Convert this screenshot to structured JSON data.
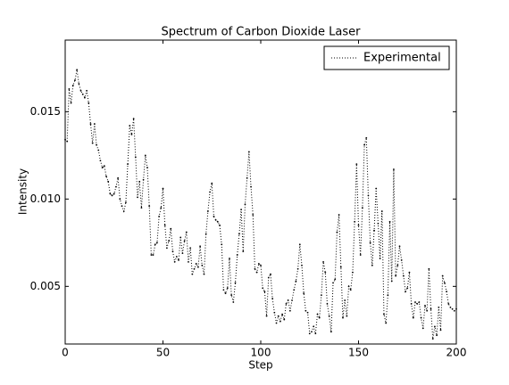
{
  "chart_data": {
    "type": "line",
    "title": "Spectrum of Carbon Dioxide Laser",
    "x_label": "Step",
    "y_label": "Intensity",
    "x": [
      0,
      1,
      2,
      3,
      4,
      5,
      6,
      7,
      8,
      9,
      10,
      11,
      12,
      13,
      14,
      15,
      16,
      17,
      18,
      19,
      20,
      21,
      22,
      23,
      24,
      25,
      26,
      27,
      28,
      29,
      30,
      31,
      32,
      33,
      34,
      35,
      36,
      37,
      38,
      39,
      40,
      41,
      42,
      43,
      44,
      45,
      46,
      47,
      48,
      49,
      50,
      51,
      52,
      53,
      54,
      55,
      56,
      57,
      58,
      59,
      60,
      61,
      62,
      63,
      64,
      65,
      66,
      67,
      68,
      69,
      70,
      71,
      72,
      73,
      74,
      75,
      76,
      77,
      78,
      79,
      80,
      81,
      82,
      83,
      84,
      85,
      86,
      87,
      88,
      89,
      90,
      91,
      92,
      93,
      94,
      95,
      96,
      97,
      98,
      99,
      100,
      101,
      102,
      103,
      104,
      105,
      106,
      107,
      108,
      109,
      110,
      111,
      112,
      113,
      114,
      115,
      116,
      117,
      118,
      119,
      120,
      121,
      122,
      123,
      124,
      125,
      126,
      127,
      128,
      129,
      130,
      131,
      132,
      133,
      134,
      135,
      136,
      137,
      138,
      139,
      140,
      141,
      142,
      143,
      144,
      145,
      146,
      147,
      148,
      149,
      150,
      151,
      152,
      153,
      154,
      155,
      156,
      157,
      158,
      159,
      160,
      161,
      162,
      163,
      164,
      165,
      166,
      167,
      168,
      169,
      170,
      171,
      172,
      173,
      174,
      175,
      176,
      177,
      178,
      179,
      180,
      181,
      182,
      183,
      184,
      185,
      186,
      187,
      188,
      189,
      190,
      191,
      192,
      193,
      194,
      195,
      196,
      197,
      198,
      199,
      200
    ],
    "series": [
      {
        "name": "Experimental",
        "color": "#000000",
        "values": [
          0.0134,
          0.0133,
          0.0163,
          0.0155,
          0.0165,
          0.0168,
          0.0174,
          0.0166,
          0.0162,
          0.016,
          0.0158,
          0.0162,
          0.0155,
          0.0143,
          0.0132,
          0.0143,
          0.0131,
          0.0128,
          0.0122,
          0.0118,
          0.0119,
          0.0113,
          0.011,
          0.0103,
          0.0102,
          0.0103,
          0.0107,
          0.0112,
          0.01,
          0.0096,
          0.0093,
          0.0098,
          0.012,
          0.0142,
          0.0137,
          0.0146,
          0.0124,
          0.0101,
          0.011,
          0.0095,
          0.0111,
          0.0125,
          0.0118,
          0.0096,
          0.0068,
          0.0068,
          0.0074,
          0.0075,
          0.009,
          0.0095,
          0.0106,
          0.0085,
          0.0072,
          0.0076,
          0.0083,
          0.007,
          0.0064,
          0.0067,
          0.0065,
          0.0078,
          0.0069,
          0.0076,
          0.0081,
          0.0064,
          0.0072,
          0.0057,
          0.006,
          0.0063,
          0.0061,
          0.0073,
          0.0062,
          0.0057,
          0.008,
          0.0093,
          0.0104,
          0.0109,
          0.009,
          0.0088,
          0.0087,
          0.0085,
          0.0074,
          0.0048,
          0.0046,
          0.0049,
          0.0066,
          0.0045,
          0.0041,
          0.0052,
          0.0068,
          0.008,
          0.0094,
          0.007,
          0.0097,
          0.0112,
          0.0127,
          0.0107,
          0.0091,
          0.006,
          0.0058,
          0.0063,
          0.0062,
          0.0049,
          0.0047,
          0.0033,
          0.0055,
          0.0057,
          0.0043,
          0.0035,
          0.0029,
          0.0033,
          0.003,
          0.0034,
          0.0031,
          0.004,
          0.0042,
          0.0036,
          0.0042,
          0.0048,
          0.0053,
          0.006,
          0.0074,
          0.0062,
          0.0046,
          0.0036,
          0.0035,
          0.0023,
          0.0024,
          0.0027,
          0.0023,
          0.0034,
          0.0032,
          0.0045,
          0.0064,
          0.0058,
          0.004,
          0.0033,
          0.0024,
          0.0052,
          0.0054,
          0.0081,
          0.0091,
          0.0061,
          0.0032,
          0.0042,
          0.0033,
          0.005,
          0.0048,
          0.0058,
          0.0087,
          0.012,
          0.0085,
          0.0068,
          0.0095,
          0.0131,
          0.0135,
          0.0102,
          0.0075,
          0.0062,
          0.0082,
          0.0106,
          0.0086,
          0.0066,
          0.0093,
          0.0034,
          0.0029,
          0.0045,
          0.0087,
          0.0053,
          0.0117,
          0.0056,
          0.0062,
          0.0073,
          0.0065,
          0.0056,
          0.0047,
          0.0049,
          0.0058,
          0.004,
          0.0032,
          0.0041,
          0.004,
          0.0041,
          0.0032,
          0.0026,
          0.0039,
          0.0036,
          0.006,
          0.0037,
          0.002,
          0.0027,
          0.0022,
          0.0038,
          0.0025,
          0.0056,
          0.0052,
          0.0047,
          0.004,
          0.0038,
          0.0037,
          0.0036,
          0.0037
        ]
      }
    ],
    "xlim": [
      0,
      200
    ],
    "xticks": [
      0,
      50,
      100,
      150,
      200
    ],
    "ylim": [
      0.0017,
      0.0191
    ],
    "yticks": [
      0.005,
      {
        "value": 0.01,
        "label": "0.010"
      },
      0.015
    ],
    "legend": "upper right",
    "grid": false
  }
}
